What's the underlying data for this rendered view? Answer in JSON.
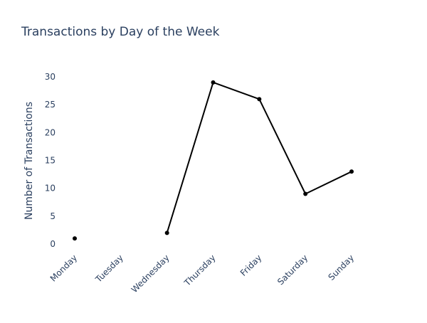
{
  "chart_data": {
    "type": "line",
    "title": "Transactions by Day of the Week",
    "xlabel": "",
    "ylabel": "Number of Transactions",
    "categories": [
      "Monday",
      "Tuesday",
      "Wednesday",
      "Thursday",
      "Friday",
      "Saturday",
      "Sunday"
    ],
    "series": [
      {
        "values": [
          1,
          null,
          2,
          29,
          26,
          9,
          13
        ]
      }
    ],
    "yticks": [
      0,
      5,
      10,
      15,
      20,
      25,
      30
    ],
    "ylim": [
      0,
      30
    ],
    "grid": false,
    "legend": "none",
    "line_color": "#000000",
    "text_color": "#2a3f5f"
  }
}
